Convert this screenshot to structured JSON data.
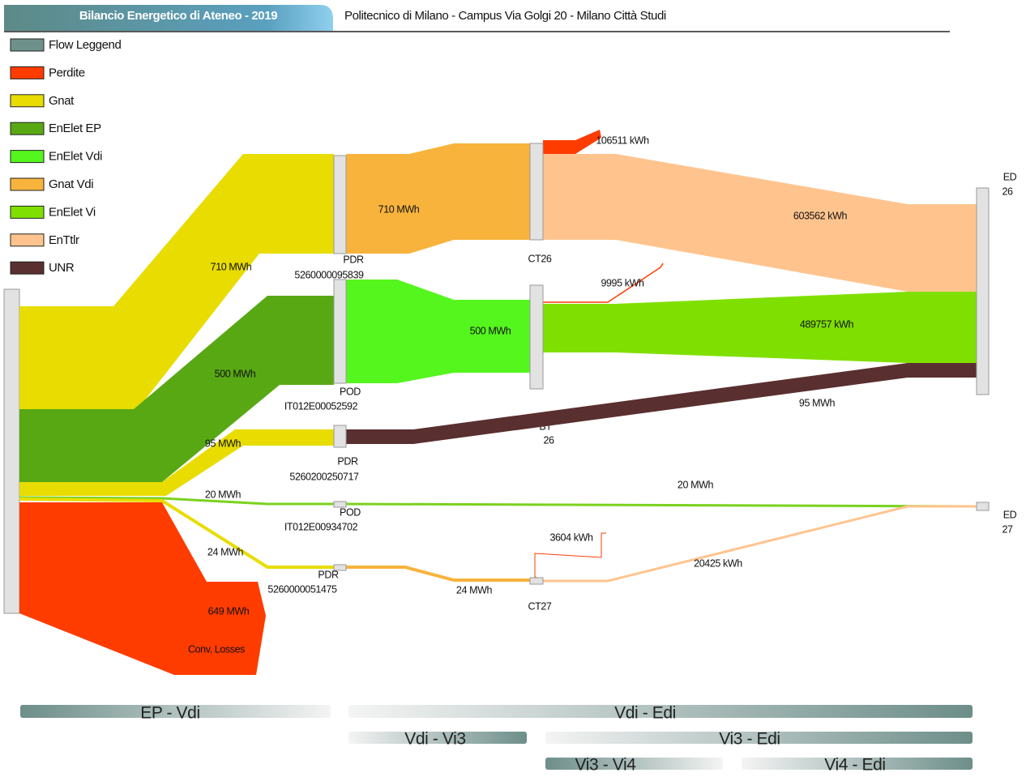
{
  "header": {
    "title": "Bilancio Energetico di Ateneo - 2019",
    "subtitle": "Politecnico di Milano - Campus Via Golgi 20 - Milano Città Studi"
  },
  "legend": [
    {
      "label": "Flow Leggend",
      "color": "#6f918b"
    },
    {
      "label": "Perdite",
      "color": "#ff3c00"
    },
    {
      "label": "Gnat",
      "color": "#e8dc00"
    },
    {
      "label": "EnElet EP",
      "color": "#58a814"
    },
    {
      "label": "EnElet Vdi",
      "color": "#55f51e"
    },
    {
      "label": "Gnat Vdi",
      "color": "#f8b33c"
    },
    {
      "label": "EnElet Vi",
      "color": "#7fe000"
    },
    {
      "label": "EnTtlr",
      "color": "#ffc48e"
    },
    {
      "label": "UNR",
      "color": "#5a2f2f"
    }
  ],
  "nodes": [
    {
      "label": "PDR",
      "code": "5260000095839"
    },
    {
      "label": "POD",
      "code": "IT012E00052592"
    },
    {
      "label": "PDR",
      "code": "5260200250717"
    },
    {
      "label": "POD",
      "code": "IT012E00934702"
    },
    {
      "label": "PDR",
      "code": "5260000051475"
    },
    {
      "label": "CT26"
    },
    {
      "label": "BT",
      "code": "26"
    },
    {
      "label": "CT27"
    },
    {
      "label": "ED",
      "code": "26"
    },
    {
      "label": "ED",
      "code": "27"
    }
  ],
  "flow_labels": [
    "710 MWh",
    "500 MWh",
    "95 MWh",
    "20 MWh",
    "24 MWh",
    "649 MWh",
    "Conv. Losses",
    "710 MWh",
    "106511 kWh",
    "603562 kWh",
    "500 MWh",
    "9995 kWh",
    "489757 kWh",
    "95 MWh",
    "20 MWh",
    "24 MWh",
    "3604 kWh",
    "20425 kWh"
  ],
  "phases": [
    "EP - Vdi",
    "Vdi - Edi",
    "Vdi - Vi3",
    "Vi3 - Edi",
    "Vi3 - Vi4",
    "Vi4 - Edi"
  ]
}
